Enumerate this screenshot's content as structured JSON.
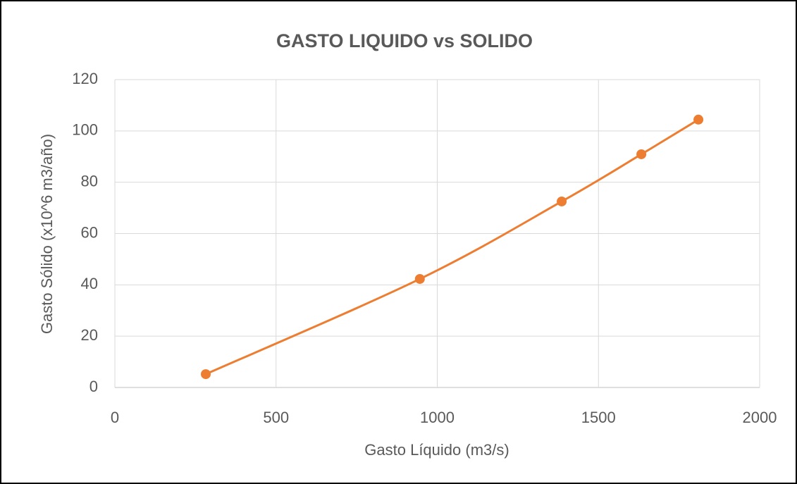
{
  "chart_data": {
    "type": "scatter",
    "title": "GASTO LIQUIDO vs SOLIDO",
    "x_label": "Gasto Líquido (m3/s)",
    "y_label": "Gasto Sólido (x10^6 m3/año)",
    "x": [
      282,
      946,
      1386,
      1633,
      1810
    ],
    "values": [
      5.2,
      42.3,
      72.5,
      90.9,
      104.4
    ],
    "color": "#ed7d31",
    "smooth": true,
    "markers": true,
    "xlim": [
      0,
      2000
    ],
    "xticks": [
      0,
      500,
      1000,
      1500,
      2000
    ],
    "ylim": [
      0,
      120
    ],
    "yticks": [
      0,
      20,
      40,
      60,
      80,
      100,
      120
    ],
    "grid": true
  }
}
